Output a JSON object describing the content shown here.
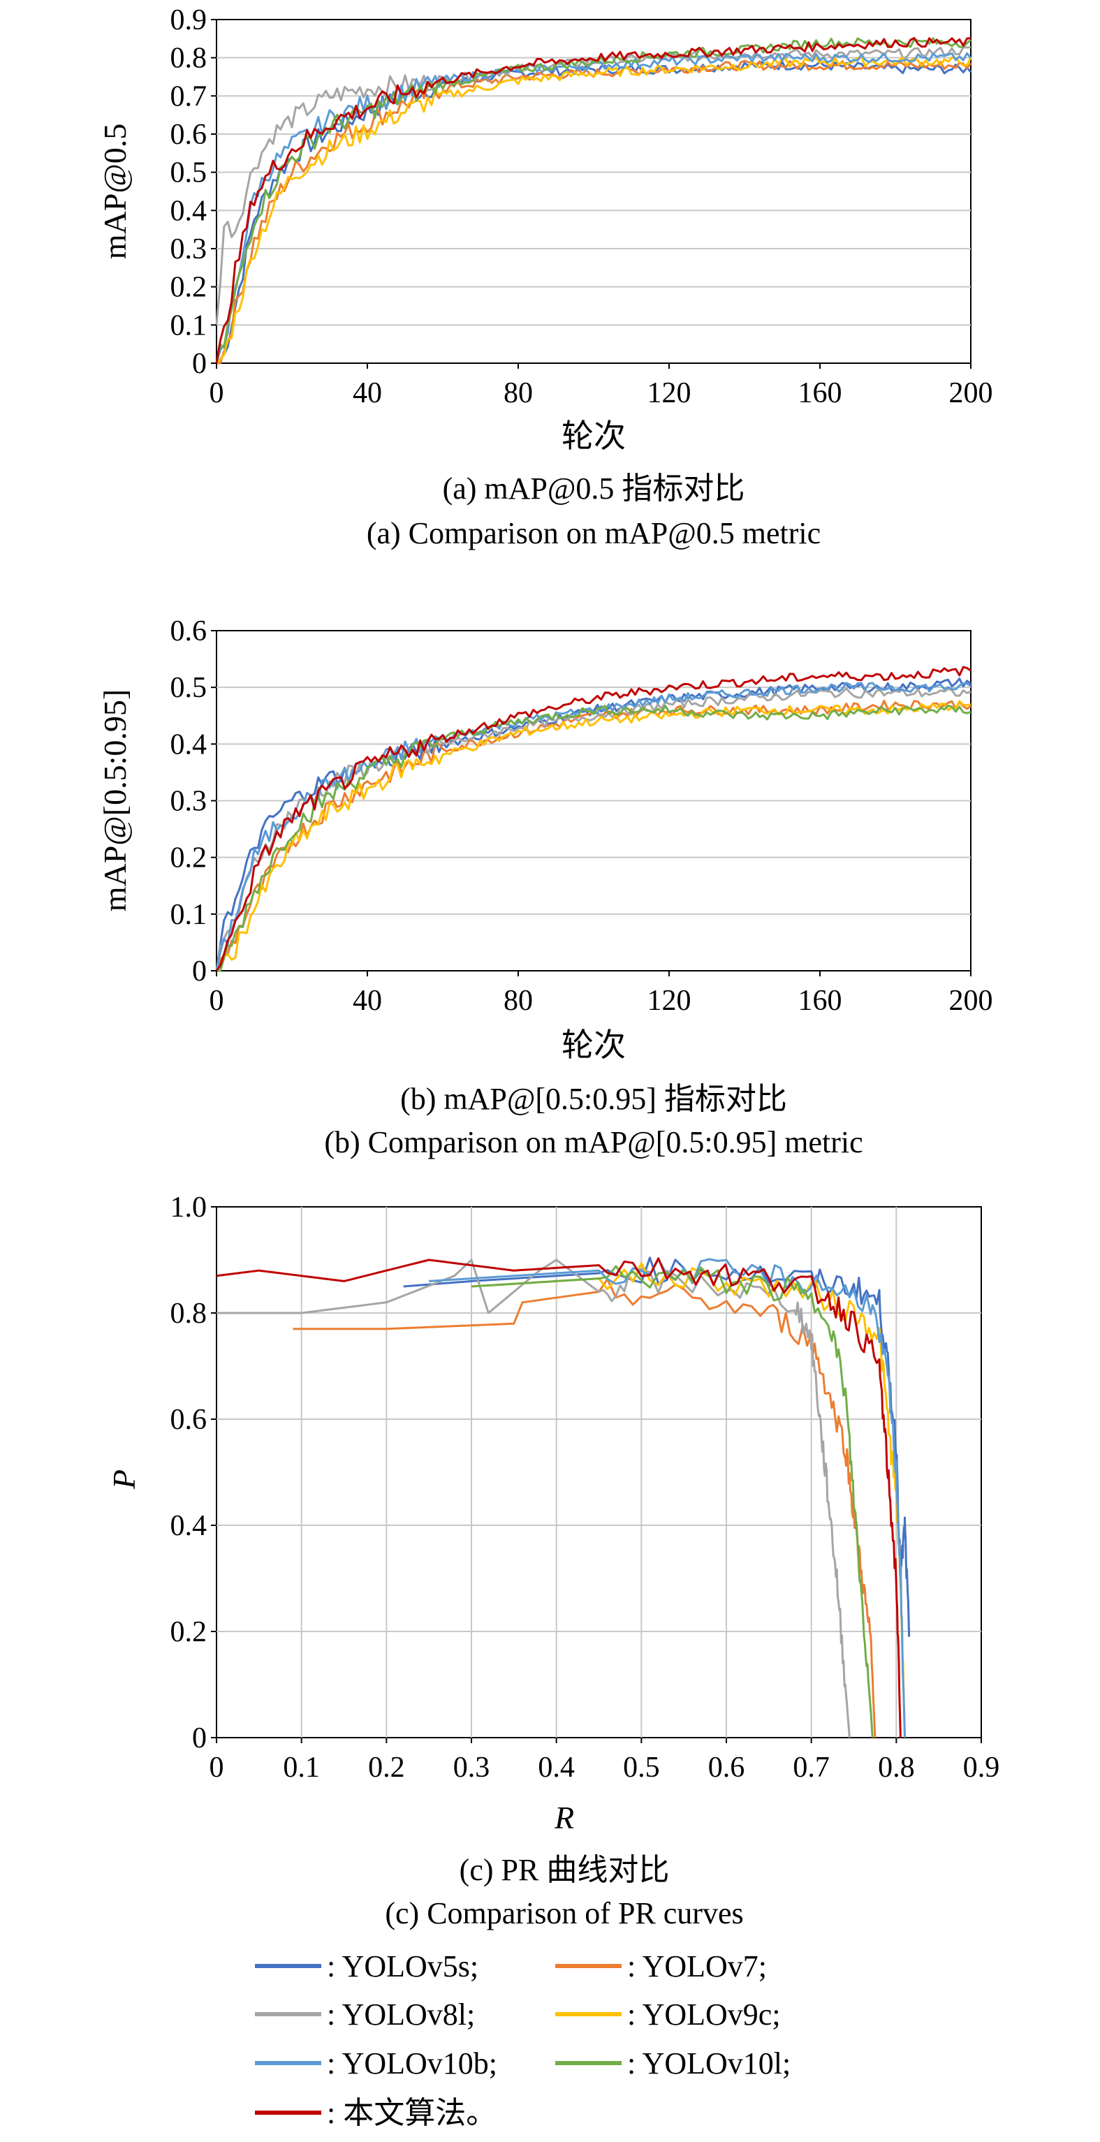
{
  "series_styles": [
    {
      "name": "YOLOv5s",
      "color": "#4472c4"
    },
    {
      "name": "YOLOv7",
      "color": "#ed7d31"
    },
    {
      "name": "YOLOv8l",
      "color": "#a5a5a5"
    },
    {
      "name": "YOLOv9c",
      "color": "#ffc000"
    },
    {
      "name": "YOLOv10b",
      "color": "#5b9bd5"
    },
    {
      "name": "YOLOv10l",
      "color": "#70ad47"
    },
    {
      "name": "本文算法",
      "color": "#c00000"
    }
  ],
  "legend": {
    "entries": [
      ": YOLOv5s;",
      ": YOLOv7;",
      ": YOLOv8l;",
      ": YOLOv9c;",
      ": YOLOv10b;",
      ": YOLOv10l;",
      ": 本文算法。"
    ]
  },
  "chart_data": [
    {
      "type": "line",
      "caption_zh": "(a) mAP@0.5 指标对比",
      "caption_en": "(a) Comparison on mAP@0.5 metric",
      "xlabel": "轮次",
      "ylabel": "mAP@0.5",
      "xlim": [
        0,
        200
      ],
      "ylim": [
        0,
        0.9
      ],
      "xticks": [
        "0",
        "40",
        "80",
        "120",
        "160",
        "200"
      ],
      "yticks": [
        "0",
        "0.1",
        "0.2",
        "0.3",
        "0.4",
        "0.5",
        "0.6",
        "0.7",
        "0.8",
        "0.9"
      ],
      "grid": "horizontal",
      "x": [
        0,
        2,
        5,
        10,
        15,
        20,
        30,
        40,
        50,
        60,
        80,
        100,
        120,
        140,
        160,
        180,
        200
      ],
      "series": [
        {
          "name": "YOLOv5s",
          "values": [
            0,
            0.02,
            0.15,
            0.38,
            0.48,
            0.54,
            0.61,
            0.66,
            0.7,
            0.73,
            0.76,
            0.77,
            0.77,
            0.78,
            0.78,
            0.77,
            0.77
          ]
        },
        {
          "name": "YOLOv7",
          "values": [
            0,
            0.03,
            0.14,
            0.32,
            0.42,
            0.5,
            0.58,
            0.63,
            0.68,
            0.72,
            0.75,
            0.76,
            0.77,
            0.78,
            0.78,
            0.78,
            0.78
          ]
        },
        {
          "name": "YOLOv8l",
          "values": [
            0.1,
            0.36,
            0.35,
            0.52,
            0.6,
            0.64,
            0.7,
            0.72,
            0.73,
            0.74,
            0.77,
            0.79,
            0.8,
            0.81,
            0.81,
            0.81,
            0.82
          ]
        },
        {
          "name": "YOLOv9c",
          "values": [
            0,
            0.02,
            0.12,
            0.3,
            0.41,
            0.49,
            0.56,
            0.61,
            0.66,
            0.7,
            0.74,
            0.76,
            0.77,
            0.78,
            0.79,
            0.79,
            0.79
          ]
        },
        {
          "name": "YOLOv10b",
          "values": [
            0,
            0.03,
            0.2,
            0.44,
            0.52,
            0.57,
            0.64,
            0.68,
            0.71,
            0.74,
            0.77,
            0.78,
            0.79,
            0.8,
            0.8,
            0.8,
            0.8
          ]
        },
        {
          "name": "YOLOv10l",
          "values": [
            0,
            0.05,
            0.18,
            0.38,
            0.47,
            0.54,
            0.62,
            0.66,
            0.7,
            0.73,
            0.77,
            0.79,
            0.81,
            0.82,
            0.84,
            0.84,
            0.84
          ]
        },
        {
          "name": "本文算法",
          "values": [
            0,
            0.08,
            0.24,
            0.44,
            0.51,
            0.56,
            0.63,
            0.67,
            0.71,
            0.74,
            0.78,
            0.8,
            0.81,
            0.82,
            0.83,
            0.84,
            0.84
          ]
        }
      ]
    },
    {
      "type": "line",
      "caption_zh": "(b) mAP@[0.5:0.95] 指标对比",
      "caption_en": "(b) Comparison on mAP@[0.5:0.95] metric",
      "xlabel": "轮次",
      "ylabel": "mAP@[0.5:0.95]",
      "xlim": [
        0,
        200
      ],
      "ylim": [
        0,
        0.6
      ],
      "xticks": [
        "0",
        "40",
        "80",
        "120",
        "160",
        "200"
      ],
      "yticks": [
        "0",
        "0.1",
        "0.2",
        "0.3",
        "0.4",
        "0.5",
        "0.6"
      ],
      "grid": "horizontal",
      "x": [
        0,
        2,
        5,
        10,
        15,
        20,
        30,
        40,
        50,
        60,
        80,
        100,
        120,
        140,
        160,
        180,
        200
      ],
      "series": [
        {
          "name": "YOLOv5s",
          "values": [
            0,
            0.1,
            0.12,
            0.22,
            0.27,
            0.3,
            0.34,
            0.36,
            0.38,
            0.4,
            0.43,
            0.46,
            0.48,
            0.49,
            0.5,
            0.5,
            0.51
          ]
        },
        {
          "name": "YOLOv7",
          "values": [
            0,
            0.02,
            0.06,
            0.13,
            0.18,
            0.23,
            0.29,
            0.33,
            0.36,
            0.39,
            0.42,
            0.45,
            0.46,
            0.46,
            0.46,
            0.47,
            0.47
          ]
        },
        {
          "name": "YOLOv8l",
          "values": [
            0,
            0.05,
            0.09,
            0.19,
            0.24,
            0.28,
            0.33,
            0.36,
            0.38,
            0.4,
            0.43,
            0.45,
            0.47,
            0.48,
            0.49,
            0.49,
            0.49
          ]
        },
        {
          "name": "YOLOv9c",
          "values": [
            0,
            0.01,
            0.04,
            0.11,
            0.17,
            0.22,
            0.28,
            0.32,
            0.36,
            0.38,
            0.42,
            0.44,
            0.45,
            0.46,
            0.46,
            0.46,
            0.47
          ]
        },
        {
          "name": "YOLOv10b",
          "values": [
            0,
            0.04,
            0.1,
            0.2,
            0.25,
            0.28,
            0.33,
            0.36,
            0.39,
            0.41,
            0.44,
            0.46,
            0.48,
            0.49,
            0.5,
            0.5,
            0.5
          ]
        },
        {
          "name": "YOLOv10l",
          "values": [
            0,
            0.02,
            0.06,
            0.14,
            0.2,
            0.25,
            0.31,
            0.35,
            0.38,
            0.41,
            0.44,
            0.46,
            0.46,
            0.45,
            0.45,
            0.46,
            0.46
          ]
        },
        {
          "name": "本文算法",
          "values": [
            0,
            0.03,
            0.08,
            0.17,
            0.23,
            0.27,
            0.32,
            0.36,
            0.39,
            0.41,
            0.45,
            0.48,
            0.5,
            0.51,
            0.52,
            0.52,
            0.53
          ]
        }
      ]
    },
    {
      "type": "line",
      "caption_zh": "(c) PR 曲线对比",
      "caption_en": "(c) Comparison of PR curves",
      "xlabel": "R",
      "ylabel": "P",
      "xlim": [
        0,
        0.9
      ],
      "ylim": [
        0,
        1.0
      ],
      "xticks": [
        "0",
        "0.1",
        "0.2",
        "0.3",
        "0.4",
        "0.5",
        "0.6",
        "0.7",
        "0.8",
        "0.9"
      ],
      "yticks": [
        "0",
        "0.2",
        "0.4",
        "0.6",
        "0.8",
        "1.0"
      ],
      "grid": "both",
      "series": [
        {
          "name": "YOLOv5s",
          "points": [
            [
              0.22,
              0.85
            ],
            [
              0.3,
              0.86
            ],
            [
              0.4,
              0.87
            ],
            [
              0.5,
              0.88
            ],
            [
              0.6,
              0.88
            ],
            [
              0.7,
              0.86
            ],
            [
              0.75,
              0.85
            ],
            [
              0.78,
              0.82
            ],
            [
              0.79,
              0.7
            ],
            [
              0.8,
              0.55
            ],
            [
              0.805,
              0.3
            ],
            [
              0.81,
              0.4
            ],
            [
              0.815,
              0.19
            ]
          ]
        },
        {
          "name": "YOLOv7",
          "points": [
            [
              0.09,
              0.77
            ],
            [
              0.2,
              0.77
            ],
            [
              0.35,
              0.78
            ],
            [
              0.36,
              0.82
            ],
            [
              0.45,
              0.84
            ],
            [
              0.55,
              0.83
            ],
            [
              0.65,
              0.8
            ],
            [
              0.7,
              0.75
            ],
            [
              0.72,
              0.65
            ],
            [
              0.74,
              0.55
            ],
            [
              0.75,
              0.42
            ],
            [
              0.76,
              0.3
            ],
            [
              0.77,
              0.18
            ],
            [
              0.775,
              0
            ]
          ]
        },
        {
          "name": "YOLOv8l",
          "points": [
            [
              0,
              0.8
            ],
            [
              0.1,
              0.8
            ],
            [
              0.2,
              0.82
            ],
            [
              0.28,
              0.87
            ],
            [
              0.3,
              0.9
            ],
            [
              0.32,
              0.8
            ],
            [
              0.38,
              0.88
            ],
            [
              0.4,
              0.9
            ],
            [
              0.45,
              0.84
            ],
            [
              0.5,
              0.86
            ],
            [
              0.6,
              0.85
            ],
            [
              0.68,
              0.82
            ],
            [
              0.7,
              0.75
            ],
            [
              0.71,
              0.6
            ],
            [
              0.72,
              0.45
            ],
            [
              0.73,
              0.3
            ],
            [
              0.74,
              0.1
            ],
            [
              0.745,
              0
            ]
          ]
        },
        {
          "name": "YOLOv9c",
          "points": [
            [
              0.3,
              0.85
            ],
            [
              0.4,
              0.86
            ],
            [
              0.5,
              0.87
            ],
            [
              0.6,
              0.86
            ],
            [
              0.7,
              0.84
            ],
            [
              0.75,
              0.8
            ],
            [
              0.78,
              0.76
            ],
            [
              0.79,
              0.6
            ],
            [
              0.8,
              0.45
            ],
            [
              0.805,
              0.3
            ],
            [
              0.81,
              0
            ]
          ]
        },
        {
          "name": "YOLOv10b",
          "points": [
            [
              0.25,
              0.86
            ],
            [
              0.35,
              0.87
            ],
            [
              0.45,
              0.88
            ],
            [
              0.55,
              0.88
            ],
            [
              0.65,
              0.87
            ],
            [
              0.72,
              0.85
            ],
            [
              0.77,
              0.82
            ],
            [
              0.79,
              0.68
            ],
            [
              0.8,
              0.5
            ],
            [
              0.805,
              0.3
            ],
            [
              0.81,
              0
            ]
          ]
        },
        {
          "name": "YOLOv10l",
          "points": [
            [
              0.3,
              0.85
            ],
            [
              0.4,
              0.86
            ],
            [
              0.5,
              0.87
            ],
            [
              0.6,
              0.86
            ],
            [
              0.68,
              0.84
            ],
            [
              0.72,
              0.8
            ],
            [
              0.74,
              0.65
            ],
            [
              0.75,
              0.45
            ],
            [
              0.76,
              0.25
            ],
            [
              0.77,
              0.05
            ],
            [
              0.772,
              0
            ]
          ]
        },
        {
          "name": "本文算法",
          "points": [
            [
              0,
              0.87
            ],
            [
              0.05,
              0.88
            ],
            [
              0.1,
              0.87
            ],
            [
              0.15,
              0.86
            ],
            [
              0.25,
              0.9
            ],
            [
              0.35,
              0.88
            ],
            [
              0.45,
              0.89
            ],
            [
              0.55,
              0.88
            ],
            [
              0.62,
              0.87
            ],
            [
              0.68,
              0.86
            ],
            [
              0.72,
              0.83
            ],
            [
              0.75,
              0.78
            ],
            [
              0.78,
              0.7
            ],
            [
              0.79,
              0.5
            ],
            [
              0.8,
              0.3
            ],
            [
              0.805,
              0
            ]
          ]
        }
      ]
    }
  ]
}
